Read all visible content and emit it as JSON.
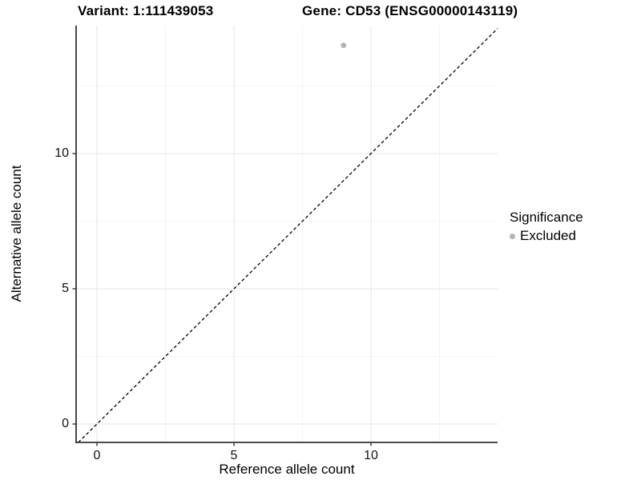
{
  "titles": {
    "variant": "Variant: 1:111439053",
    "gene": "Gene: CD53 (ENSG00000143119)"
  },
  "legend": {
    "title": "Significance",
    "items": [
      {
        "label": "Excluded",
        "color": "#b4b4b4"
      }
    ]
  },
  "chart_data": {
    "type": "scatter",
    "xlabel": "Reference allele count",
    "ylabel": "Alternative allele count",
    "x_ticks": [
      0,
      5,
      10
    ],
    "y_ticks": [
      0,
      5,
      10
    ],
    "x_minor_ticks": [
      2.5,
      7.5,
      12.5
    ],
    "y_minor_ticks": [
      2.5,
      7.5,
      12.5
    ],
    "xlim": [
      -0.76,
      14.62
    ],
    "ylim": [
      -0.68,
      14.73
    ],
    "grid": true,
    "legend_position": "right",
    "series": [
      {
        "name": "Excluded",
        "color": "#b4b4b4",
        "points": [
          {
            "x": 9,
            "y": 14
          }
        ]
      }
    ],
    "reference_line": {
      "type": "identity",
      "style": "dashed",
      "color": "#000000"
    }
  },
  "colors": {
    "background": "#ffffff",
    "axis_line": "#333333",
    "tick_mark": "#333333",
    "grid_major": "#e9e9e9",
    "grid_minor": "#f4f4f4",
    "text": "#000000",
    "excluded_point": "#b4b4b4"
  }
}
